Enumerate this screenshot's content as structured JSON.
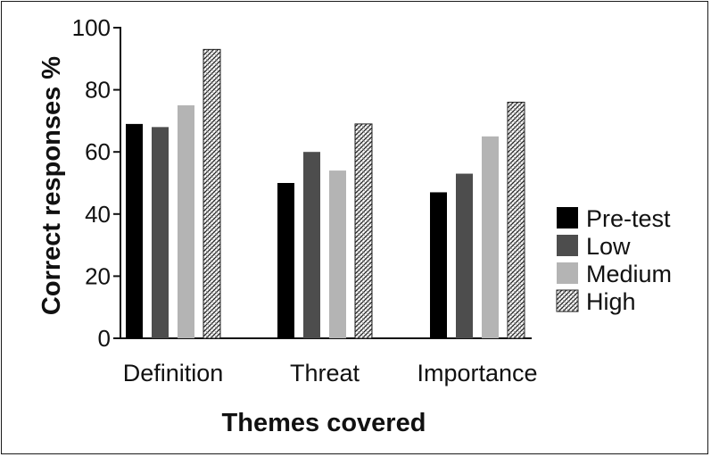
{
  "chart_data": {
    "type": "bar",
    "title": "",
    "xlabel": "Themes covered",
    "ylabel": "Correct responses %",
    "categories": [
      "Definition",
      "Threat",
      "Importance"
    ],
    "ylim": [
      0,
      100
    ],
    "yticks": [
      "0",
      "20",
      "40",
      "60",
      "80",
      "100"
    ],
    "grid": false,
    "legend_position": "right",
    "series": [
      {
        "name": "Pre-test",
        "values": [
          69,
          50,
          47
        ],
        "color": "#000000",
        "pattern": "solid"
      },
      {
        "name": "Low",
        "values": [
          68,
          60,
          53
        ],
        "color": "#4d4d4d",
        "pattern": "solid"
      },
      {
        "name": "Medium",
        "values": [
          75,
          54,
          65
        ],
        "color": "#b4b4b4",
        "pattern": "solid"
      },
      {
        "name": "High",
        "values": [
          93,
          69,
          76
        ],
        "color": "#ffffff",
        "pattern": "hatched"
      }
    ]
  }
}
